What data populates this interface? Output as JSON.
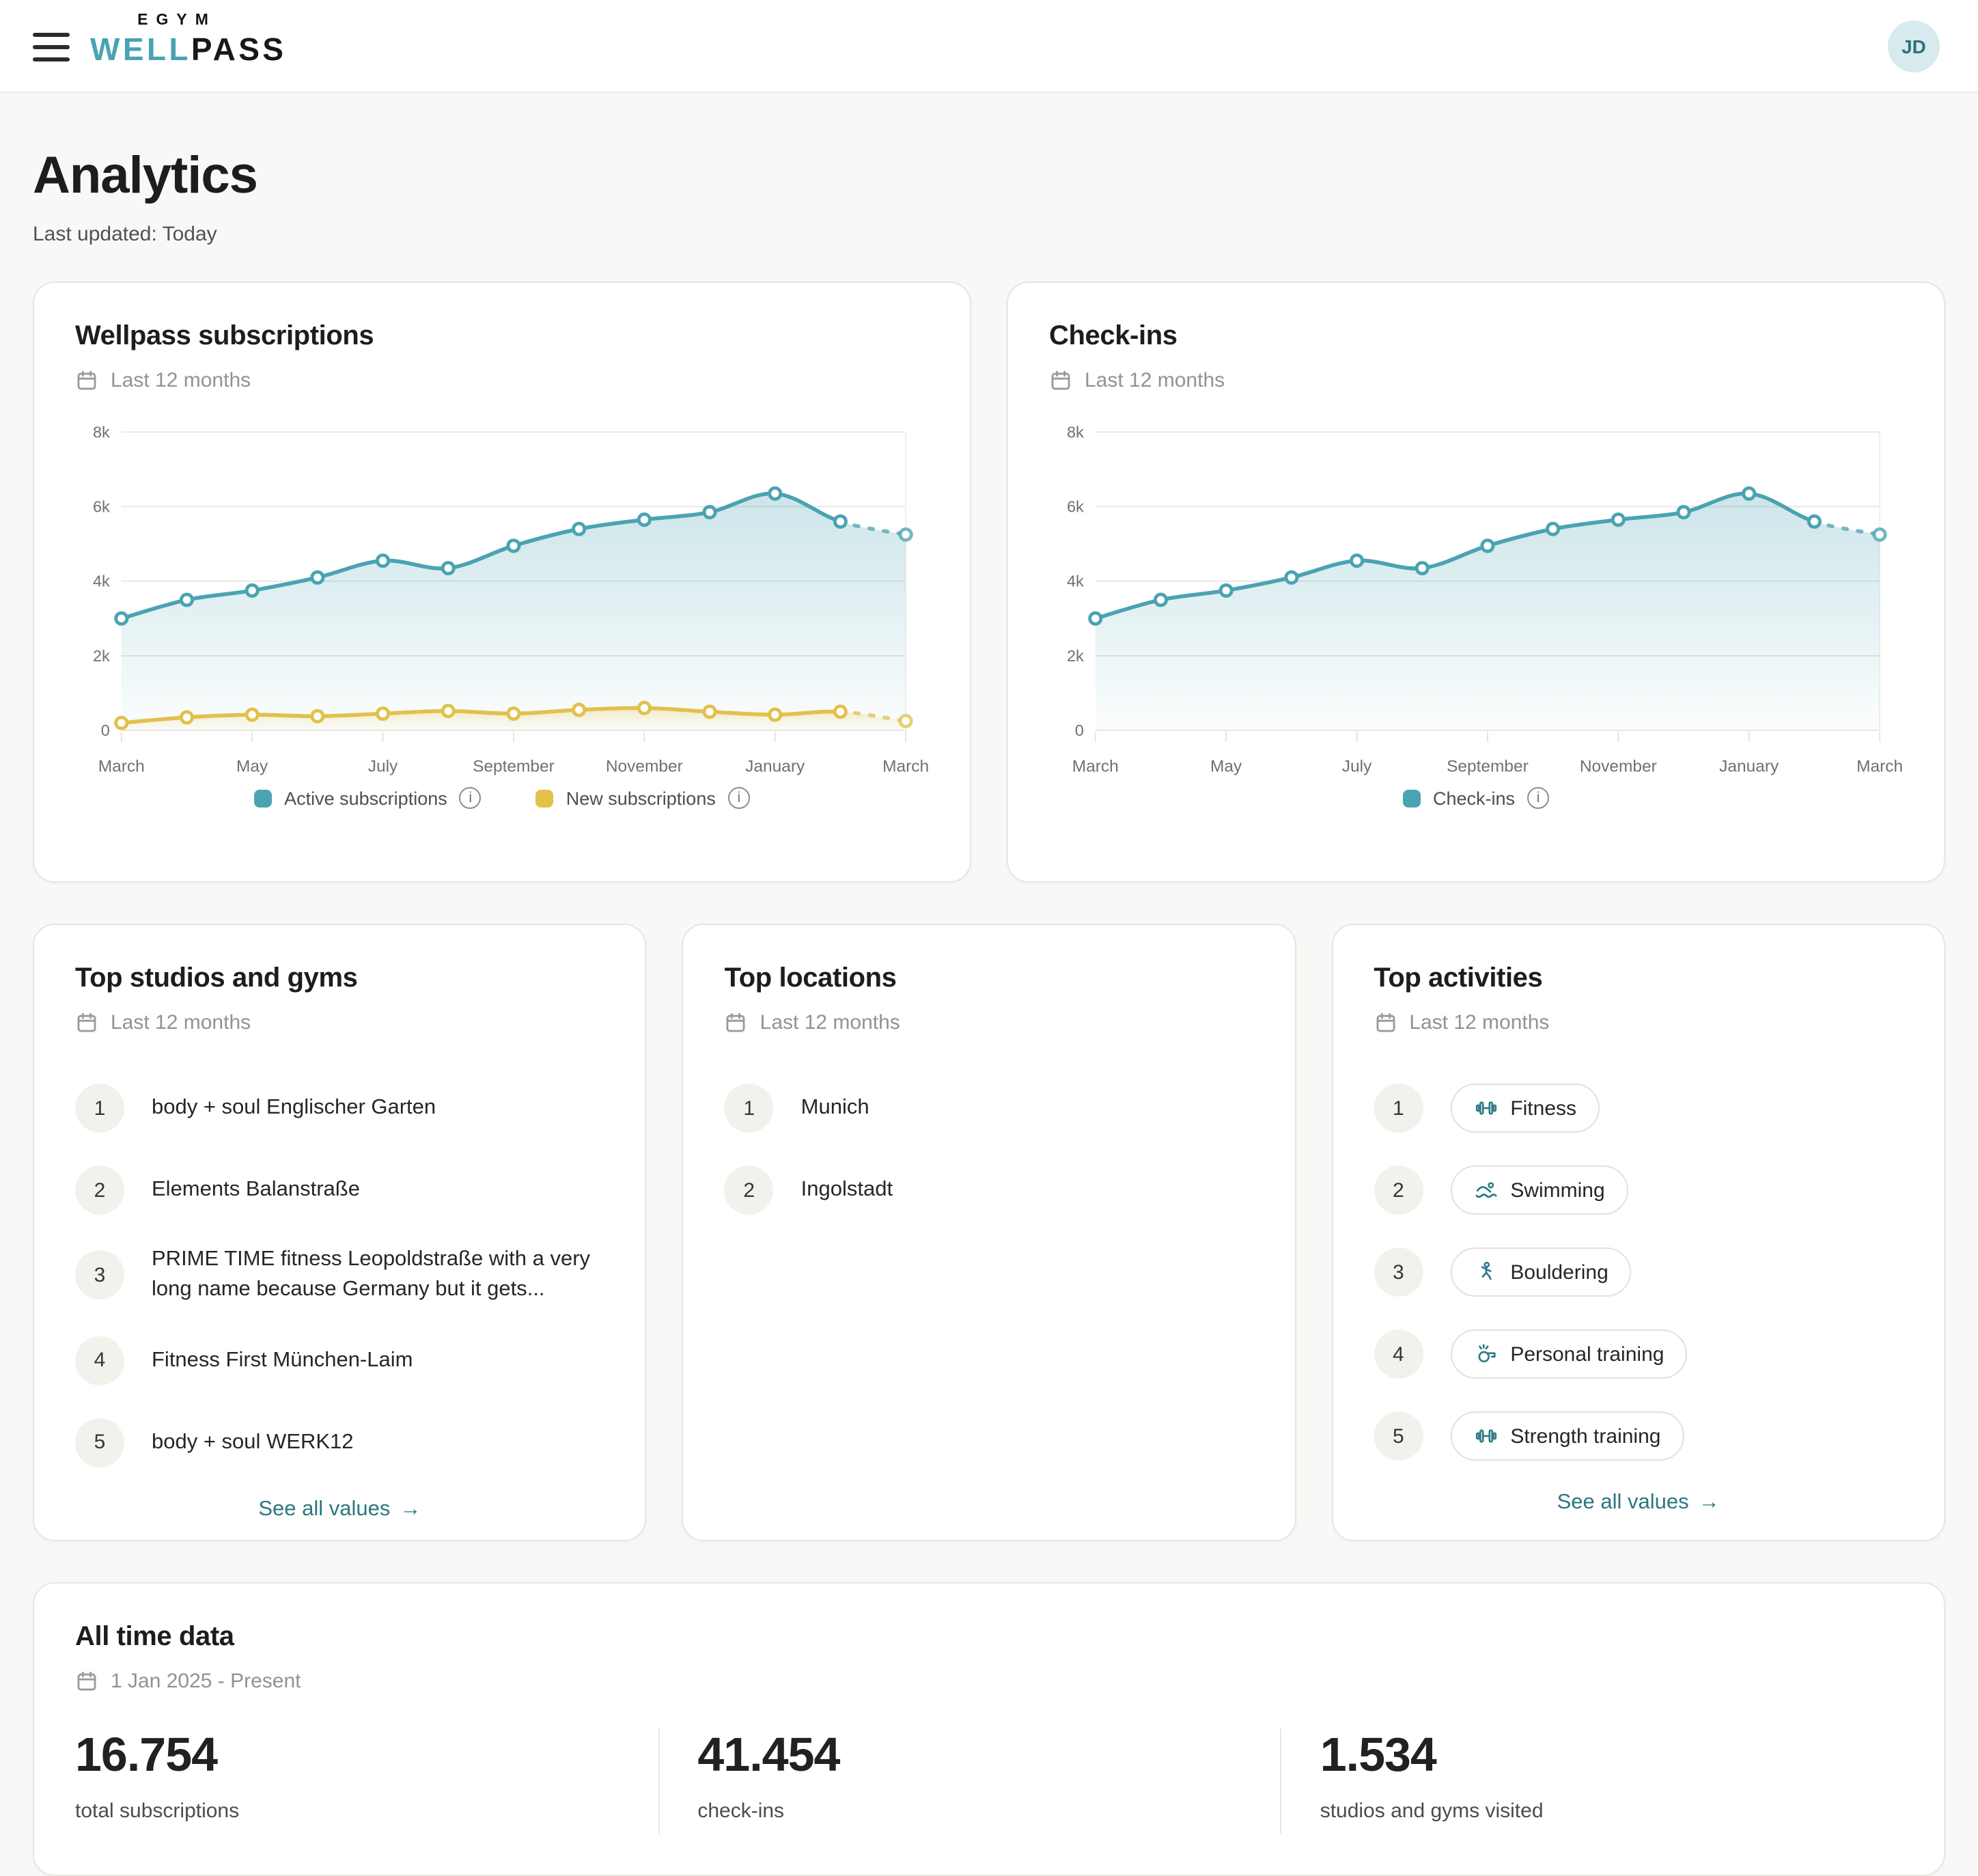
{
  "icons": {
    "info_glyph": "i",
    "arrow_right": "→"
  },
  "header": {
    "logo_top": "EGYM",
    "logo_well": "WELL",
    "logo_pass": "PASS",
    "avatar_initials": "JD"
  },
  "page": {
    "title": "Analytics",
    "last_updated": "Last updated: Today"
  },
  "cards": {
    "subscriptions": {
      "title": "Wellpass subscriptions",
      "period": "Last 12 months"
    },
    "checkins": {
      "title": "Check-ins",
      "period": "Last 12 months"
    },
    "top_studios": {
      "title": "Top studios and gyms",
      "period": "Last 12 months",
      "see_all": "See all values",
      "items": [
        {
          "rank": "1",
          "name": "body + soul Englischer Garten"
        },
        {
          "rank": "2",
          "name": "Elements Balanstraße"
        },
        {
          "rank": "3",
          "name": "PRIME TIME fitness Leopoldstraße with a very long name because Germany but it gets..."
        },
        {
          "rank": "4",
          "name": "Fitness First München-Laim"
        },
        {
          "rank": "5",
          "name": "body + soul WERK12"
        }
      ]
    },
    "top_locations": {
      "title": "Top locations",
      "period": "Last 12 months",
      "items": [
        {
          "rank": "1",
          "name": "Munich"
        },
        {
          "rank": "2",
          "name": "Ingolstadt"
        }
      ]
    },
    "top_activities": {
      "title": "Top activities",
      "period": "Last 12 months",
      "see_all": "See all values",
      "items": [
        {
          "rank": "1",
          "label": "Fitness",
          "icon": "dumbbell-icon"
        },
        {
          "rank": "2",
          "label": "Swimming",
          "icon": "swimmer-icon"
        },
        {
          "rank": "3",
          "label": "Bouldering",
          "icon": "climber-icon"
        },
        {
          "rank": "4",
          "label": "Personal training",
          "icon": "whistle-icon"
        },
        {
          "rank": "5",
          "label": "Strength training",
          "icon": "dumbbell-icon"
        }
      ]
    },
    "all_time": {
      "title": "All time data",
      "period": "1 Jan 2025 - Present",
      "stats": [
        {
          "value": "16.754",
          "label": "total subscriptions"
        },
        {
          "value": "41.454",
          "label": "check-ins"
        },
        {
          "value": "1.534",
          "label": "studios and gyms visited"
        }
      ]
    }
  },
  "chart_data": [
    {
      "type": "line",
      "title": "Wellpass subscriptions",
      "x": [
        "March",
        "April",
        "May",
        "June",
        "July",
        "August",
        "September",
        "October",
        "November",
        "December",
        "January",
        "February",
        "March"
      ],
      "x_tick_indices": [
        0,
        2,
        4,
        6,
        8,
        10,
        12
      ],
      "ylim": [
        0,
        8000
      ],
      "yticks": [
        "0",
        "2k",
        "4k",
        "6k",
        "8k"
      ],
      "grid": "horizontal",
      "legend_position": "bottom",
      "projection_last_segment_dashed": true,
      "series": [
        {
          "name": "Active subscriptions",
          "color": "#4AA3B2",
          "values": [
            3000,
            3500,
            3750,
            4100,
            4550,
            4350,
            4950,
            5400,
            5650,
            5850,
            6350,
            5600,
            5250
          ]
        },
        {
          "name": "New subscriptions",
          "color": "#E2C14B",
          "values": [
            200,
            350,
            420,
            380,
            450,
            520,
            450,
            550,
            600,
            500,
            420,
            500,
            250
          ]
        }
      ]
    },
    {
      "type": "line",
      "title": "Check-ins",
      "x": [
        "March",
        "April",
        "May",
        "June",
        "July",
        "August",
        "September",
        "October",
        "November",
        "December",
        "January",
        "February",
        "March"
      ],
      "x_tick_indices": [
        0,
        2,
        4,
        6,
        8,
        10,
        12
      ],
      "ylim": [
        0,
        8000
      ],
      "yticks": [
        "0",
        "2k",
        "4k",
        "6k",
        "8k"
      ],
      "grid": "horizontal",
      "legend_position": "bottom",
      "projection_last_segment_dashed": true,
      "series": [
        {
          "name": "Check-ins",
          "color": "#4AA3B2",
          "values": [
            3000,
            3500,
            3750,
            4100,
            4550,
            4350,
            4950,
            5400,
            5650,
            5850,
            6350,
            5600,
            5250
          ]
        }
      ]
    }
  ]
}
